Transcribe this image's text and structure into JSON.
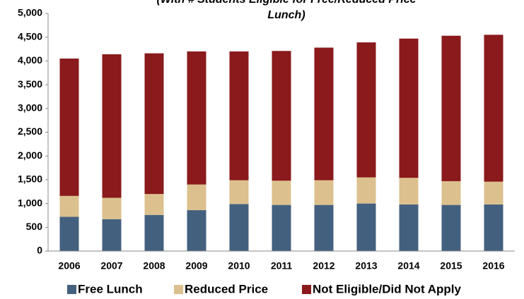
{
  "chart_data": {
    "type": "stacked-bar",
    "title": "(With # Students Eligible for Free/Reduced Price Lunch)",
    "categories": [
      "2006",
      "2007",
      "2008",
      "2009",
      "2010",
      "2011",
      "2012",
      "2013",
      "2014",
      "2015",
      "2016"
    ],
    "series": [
      {
        "name": "Free Lunch",
        "color": "#44607f",
        "values": [
          720,
          670,
          760,
          860,
          990,
          970,
          970,
          1000,
          980,
          970,
          980
        ]
      },
      {
        "name": "Reduced Price",
        "color": "#dcc18e",
        "values": [
          440,
          450,
          440,
          540,
          500,
          510,
          520,
          550,
          560,
          500,
          480
        ]
      },
      {
        "name": "Not Eligible/Did Not Apply",
        "color": "#8a1a1c",
        "values": [
          2890,
          3020,
          2960,
          2800,
          2710,
          2730,
          2790,
          2840,
          2930,
          3060,
          3090
        ]
      }
    ],
    "ylim": [
      0,
      5000
    ],
    "yticks": [
      0,
      500,
      {
        "value": 1000,
        "label": "1,000"
      },
      {
        "value": 1500,
        "label": "1,500"
      },
      {
        "value": 2000,
        "label": "2,000"
      },
      {
        "value": 2500,
        "label": "2,500"
      },
      {
        "value": 3000,
        "label": "3,000"
      },
      {
        "value": 3500,
        "label": "3,500"
      },
      {
        "value": 4000,
        "label": "4,000"
      },
      {
        "value": 4500,
        "label": "4,500"
      },
      {
        "value": 5000,
        "label": "5,000"
      }
    ],
    "grid": false
  }
}
